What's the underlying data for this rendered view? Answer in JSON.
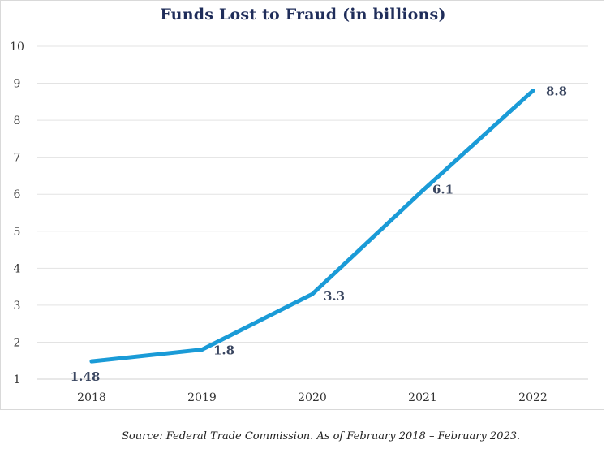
{
  "chart_data": {
    "type": "line",
    "title": "Funds Lost to Fraud (in billions)",
    "xlabel": "",
    "ylabel": "",
    "categories": [
      "2018",
      "2019",
      "2020",
      "2021",
      "2022"
    ],
    "series": [
      {
        "values": [
          1.48,
          1.8,
          3.3,
          6.1,
          8.8
        ]
      }
    ],
    "data_labels": [
      "1.48",
      "1.8",
      "3.3",
      "6.1",
      "8.8"
    ],
    "ylim": [
      1,
      10
    ],
    "yticks": [
      "1",
      "2",
      "3",
      "4",
      "5",
      "6",
      "7",
      "8",
      "9",
      "10"
    ],
    "grid": true,
    "legend": "none",
    "colors": {
      "line": "#1a9bd7",
      "title": "#1f2d5a",
      "data_label": "#3a4660",
      "tick_label": "#333333",
      "grid": "#e3e3e3"
    }
  },
  "footer": {
    "source": "Source: Federal Trade Commission.  As of February 2018 – February 2023."
  }
}
